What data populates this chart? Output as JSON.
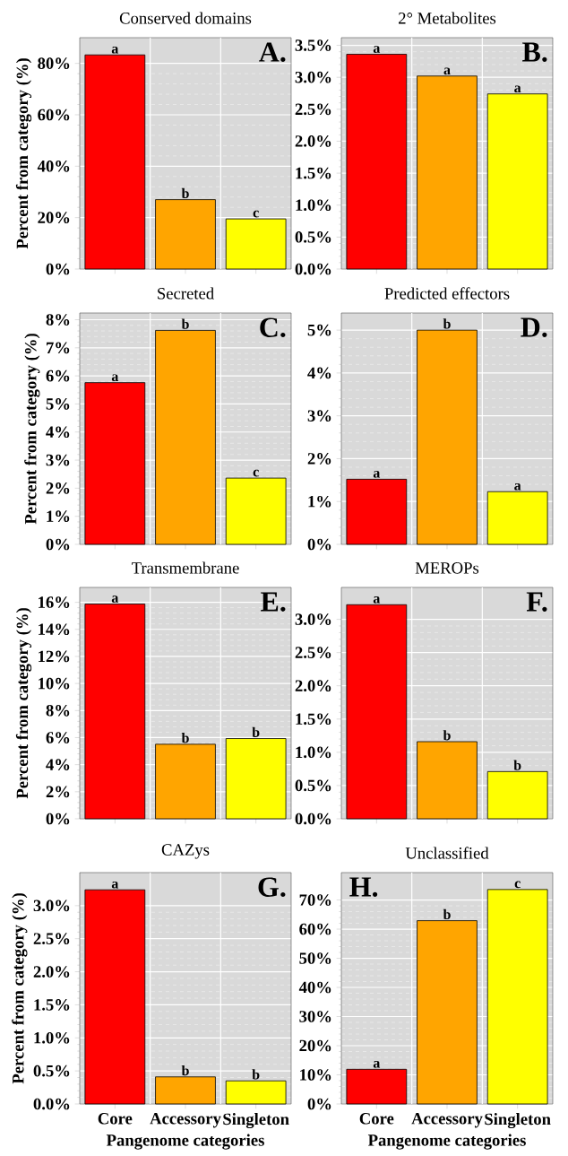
{
  "chart_data": [
    {
      "type": "bar",
      "title": "Conserved domains",
      "ylabel": "Percent from category (%)",
      "categories": [
        null,
        null,
        null
      ],
      "values": [
        83.3,
        27,
        19.5
      ],
      "colors": [
        "#ff0000",
        "#ffa500",
        "#ffff00"
      ],
      "value_labels": [
        "a",
        "b",
        "c"
      ],
      "annotations": [
        "A."
      ],
      "ylim": [
        0,
        90
      ],
      "yticks": [
        {
          "value": 0,
          "label": "0%"
        },
        {
          "value": 20,
          "label": "20%"
        },
        {
          "value": 40,
          "label": "40%"
        },
        {
          "value": 60,
          "label": "60%"
        },
        {
          "value": 80,
          "label": "80%"
        }
      ],
      "grid": true
    },
    {
      "type": "bar",
      "title": "2° Metabolites",
      "categories": [
        null,
        null,
        null
      ],
      "values": [
        3.36,
        3.02,
        2.74
      ],
      "colors": [
        "#ff0000",
        "#ffa500",
        "#ffff00"
      ],
      "value_labels": [
        "a",
        "a",
        "a"
      ],
      "annotations": [
        "B."
      ],
      "ylim": [
        0,
        3.62
      ],
      "yticks": [
        {
          "value": 0,
          "label": "0.0%"
        },
        {
          "value": 0.5,
          "label": "0.5%"
        },
        {
          "value": 1,
          "label": "1.0%"
        },
        {
          "value": 1.5,
          "label": "1.5%"
        },
        {
          "value": 2,
          "label": "2.0%"
        },
        {
          "value": 2.5,
          "label": "2.5%"
        },
        {
          "value": 3,
          "label": "3.0%"
        },
        {
          "value": 3.5,
          "label": "3.5%"
        }
      ],
      "grid": true
    },
    {
      "type": "bar",
      "title": "Secreted",
      "ylabel": "Percent from category (%)",
      "categories": [
        null,
        null,
        null
      ],
      "values": [
        5.76,
        7.62,
        2.36
      ],
      "colors": [
        "#ff0000",
        "#ffa500",
        "#ffff00"
      ],
      "value_labels": [
        "a",
        "b",
        "c"
      ],
      "annotations": [
        "C."
      ],
      "ylim": [
        0,
        8.24
      ],
      "yticks": [
        {
          "value": 0,
          "label": "0%"
        },
        {
          "value": 1,
          "label": "1%"
        },
        {
          "value": 2,
          "label": "2%"
        },
        {
          "value": 3,
          "label": "3%"
        },
        {
          "value": 4,
          "label": "4%"
        },
        {
          "value": 5,
          "label": "5%"
        },
        {
          "value": 6,
          "label": "6%"
        },
        {
          "value": 7,
          "label": "7%"
        },
        {
          "value": 8,
          "label": "8%"
        }
      ],
      "grid": true
    },
    {
      "type": "bar",
      "title": "Predicted effectors",
      "categories": [
        null,
        null,
        null
      ],
      "values": [
        1.52,
        5.0,
        1.23
      ],
      "colors": [
        "#ff0000",
        "#ffa500",
        "#ffff00"
      ],
      "value_labels": [
        "a",
        "b",
        "a"
      ],
      "annotations": [
        "D."
      ],
      "ylim": [
        0,
        5.4
      ],
      "yticks": [
        {
          "value": 0,
          "label": "0%"
        },
        {
          "value": 1,
          "label": "1%"
        },
        {
          "value": 2,
          "label": "2%"
        },
        {
          "value": 3,
          "label": "3%"
        },
        {
          "value": 4,
          "label": "4%"
        },
        {
          "value": 5,
          "label": "5%"
        }
      ],
      "grid": true
    },
    {
      "type": "bar",
      "title": "Transmembrane",
      "ylabel": "Percent from category (%)",
      "categories": [
        null,
        null,
        null
      ],
      "values": [
        15.87,
        5.51,
        5.93
      ],
      "colors": [
        "#ff0000",
        "#ffa500",
        "#ffff00"
      ],
      "value_labels": [
        "a",
        "b",
        "b"
      ],
      "annotations": [
        "E."
      ],
      "ylim": [
        0,
        17.1
      ],
      "yticks": [
        {
          "value": 0,
          "label": "0%"
        },
        {
          "value": 2,
          "label": "2%"
        },
        {
          "value": 4,
          "label": "4%"
        },
        {
          "value": 6,
          "label": "6%"
        },
        {
          "value": 8,
          "label": "8%"
        },
        {
          "value": 10,
          "label": "10%"
        },
        {
          "value": 12,
          "label": "12%"
        },
        {
          "value": 14,
          "label": "14%"
        },
        {
          "value": 16,
          "label": "16%"
        }
      ],
      "grid": true
    },
    {
      "type": "bar",
      "title": "MEROPs",
      "categories": [
        null,
        null,
        null
      ],
      "values": [
        3.22,
        1.16,
        0.71
      ],
      "colors": [
        "#ff0000",
        "#ffa500",
        "#ffff00"
      ],
      "value_labels": [
        "a",
        "b",
        "b"
      ],
      "annotations": [
        "F."
      ],
      "ylim": [
        0,
        3.48
      ],
      "yticks": [
        {
          "value": 0,
          "label": "0.0%"
        },
        {
          "value": 0.5,
          "label": "0.5%"
        },
        {
          "value": 1,
          "label": "1.0%"
        },
        {
          "value": 1.5,
          "label": "1.5%"
        },
        {
          "value": 2,
          "label": "2.0%"
        },
        {
          "value": 2.5,
          "label": "2.5%"
        },
        {
          "value": 3,
          "label": "3.0%"
        }
      ],
      "grid": true
    },
    {
      "type": "bar",
      "title": "CAZys",
      "xlabel": "Pangenome categories",
      "ylabel": "Percent from category (%)",
      "categories": [
        "Core",
        "Accessory",
        "Singleton"
      ],
      "values": [
        3.24,
        0.41,
        0.35
      ],
      "colors": [
        "#ff0000",
        "#ffa500",
        "#ffff00"
      ],
      "value_labels": [
        "a",
        "b",
        "b"
      ],
      "annotations": [
        "G."
      ],
      "ylim": [
        0,
        3.5
      ],
      "yticks": [
        {
          "value": 0,
          "label": "0.0%"
        },
        {
          "value": 0.5,
          "label": "0.5%"
        },
        {
          "value": 1,
          "label": "1.0%"
        },
        {
          "value": 1.5,
          "label": "1.5%"
        },
        {
          "value": 2,
          "label": "2.0%"
        },
        {
          "value": 2.5,
          "label": "2.5%"
        },
        {
          "value": 3,
          "label": "3.0%"
        }
      ],
      "grid": true
    },
    {
      "type": "bar",
      "title": "Unclassified",
      "xlabel": "Pangenome categories",
      "categories": [
        "Core",
        "Accessory",
        "Singleton"
      ],
      "values": [
        11.9,
        62.9,
        73.6
      ],
      "colors": [
        "#ff0000",
        "#ffa500",
        "#ffff00"
      ],
      "value_labels": [
        "a",
        "b",
        "c"
      ],
      "annotations": [
        "H."
      ],
      "ylim": [
        0,
        79.4
      ],
      "yticks": [
        {
          "value": 0,
          "label": "0%"
        },
        {
          "value": 10,
          "label": "10%"
        },
        {
          "value": 20,
          "label": "20%"
        },
        {
          "value": 30,
          "label": "30%"
        },
        {
          "value": 40,
          "label": "40%"
        },
        {
          "value": 50,
          "label": "50%"
        },
        {
          "value": 60,
          "label": "60%"
        },
        {
          "value": 70,
          "label": "70%"
        }
      ],
      "grid": true
    }
  ]
}
